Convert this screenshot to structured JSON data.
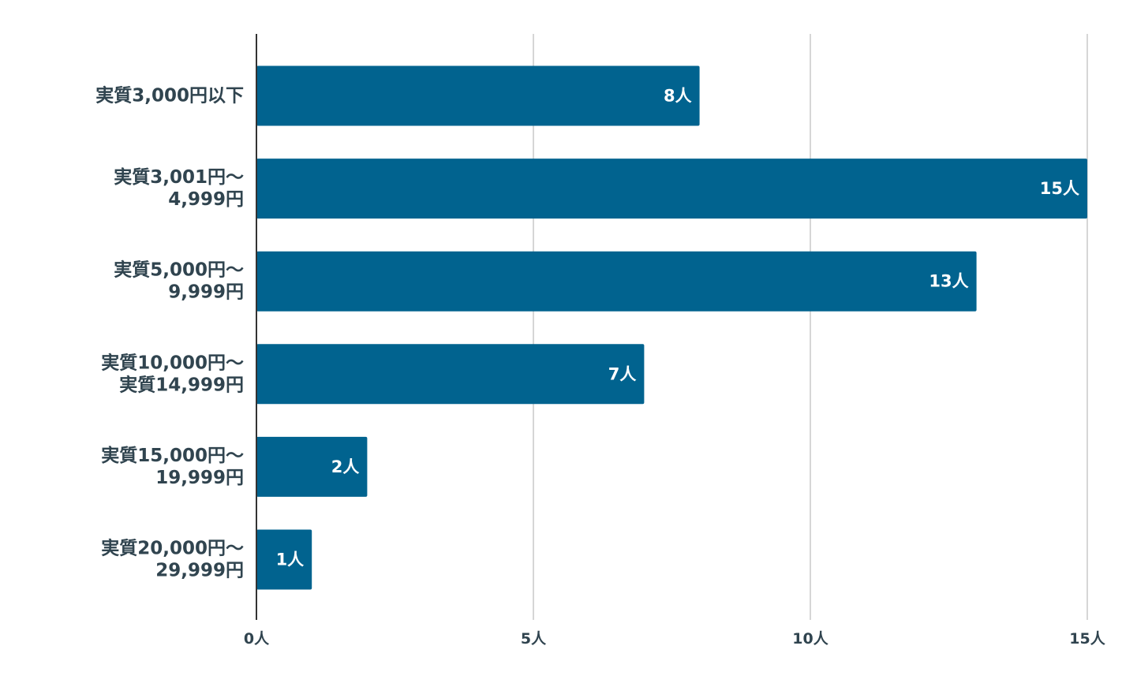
{
  "chart_data": {
    "type": "bar",
    "orientation": "horizontal",
    "categories": [
      [
        "実質3,000円以下"
      ],
      [
        "実質3,001円〜",
        "4,999円"
      ],
      [
        "実質5,000円〜",
        "9,999円"
      ],
      [
        "実質10,000円〜",
        "実質14,999円"
      ],
      [
        "実質15,000円〜",
        "19,999円"
      ],
      [
        "実質20,000円〜",
        "29,999円"
      ]
    ],
    "values": [
      8,
      15,
      13,
      7,
      2,
      1
    ],
    "value_labels": [
      "8人",
      "15人",
      "13人",
      "7人",
      "2人",
      "1人"
    ],
    "xlim": [
      0,
      15
    ],
    "x_ticks": [
      0,
      5,
      10,
      15
    ],
    "x_tick_labels": [
      "0人",
      "5人",
      "10人",
      "15人"
    ],
    "grid": true,
    "colors": {
      "bar": "#01638f",
      "bar_label": "#ffffff",
      "text": "#30444f",
      "grid": "#c8c8c8",
      "axis": "#333333"
    }
  }
}
